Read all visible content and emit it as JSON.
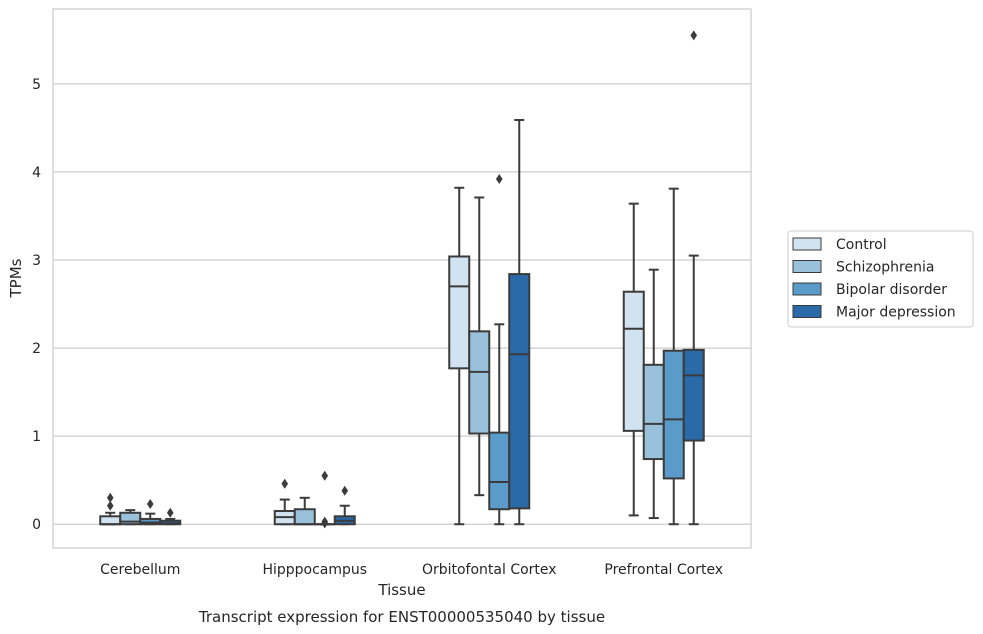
{
  "chart_data": {
    "type": "box",
    "caption": "Transcript expression for ENST00000535040 by tissue",
    "xlabel": "Tissue",
    "ylabel": "TPMs",
    "ylim": [
      -0.27,
      5.85
    ],
    "yticks": [
      0,
      1,
      2,
      3,
      4,
      5
    ],
    "grid": "horizontal",
    "legend_position": "right",
    "categories": [
      "Cerebellum",
      "Hipppocampus",
      "Orbitofontal Cortex",
      "Prefrontal Cortex"
    ],
    "series": [
      {
        "name": "Control",
        "color": "#d1e2f1",
        "boxes": [
          {
            "whislo": 0.0,
            "q1": 0.0,
            "med": 0.0,
            "q3": 0.09,
            "whishi": 0.13,
            "fliers": [
              0.21,
              0.3
            ]
          },
          {
            "whislo": 0.0,
            "q1": 0.0,
            "med": 0.08,
            "q3": 0.15,
            "whishi": 0.28,
            "fliers": [
              0.46
            ]
          },
          {
            "whislo": 0.0,
            "q1": 1.77,
            "med": 2.7,
            "q3": 3.04,
            "whishi": 3.82,
            "fliers": []
          },
          {
            "whislo": 0.1,
            "q1": 1.06,
            "med": 2.22,
            "q3": 2.64,
            "whishi": 3.64,
            "fliers": []
          }
        ]
      },
      {
        "name": "Schizophrenia",
        "color": "#9ac1dc",
        "boxes": [
          {
            "whislo": 0.0,
            "q1": 0.0,
            "med": 0.03,
            "q3": 0.13,
            "whishi": 0.16,
            "fliers": []
          },
          {
            "whislo": 0.0,
            "q1": 0.0,
            "med": 0.0,
            "q3": 0.17,
            "whishi": 0.3,
            "fliers": []
          },
          {
            "whislo": 0.33,
            "q1": 1.03,
            "med": 1.73,
            "q3": 2.19,
            "whishi": 3.71,
            "fliers": []
          },
          {
            "whislo": 0.07,
            "q1": 0.74,
            "med": 1.14,
            "q3": 1.81,
            "whishi": 2.89,
            "fliers": []
          }
        ]
      },
      {
        "name": "Bipolar disorder",
        "color": "#5a9bc9",
        "boxes": [
          {
            "whislo": 0.0,
            "q1": 0.0,
            "med": 0.02,
            "q3": 0.06,
            "whishi": 0.12,
            "fliers": [
              0.23
            ]
          },
          {
            "whislo": 0.0,
            "q1": 0.0,
            "med": 0.0,
            "q3": 0.0,
            "whishi": 0.0,
            "fliers": [
              0.01,
              0.03,
              0.55
            ]
          },
          {
            "whislo": 0.0,
            "q1": 0.17,
            "med": 0.48,
            "q3": 1.04,
            "whishi": 2.27,
            "fliers": [
              3.92
            ]
          },
          {
            "whislo": 0.0,
            "q1": 0.52,
            "med": 1.19,
            "q3": 1.97,
            "whishi": 3.81,
            "fliers": []
          }
        ]
      },
      {
        "name": "Major depression",
        "color": "#2b6aa9",
        "boxes": [
          {
            "whislo": 0.0,
            "q1": 0.0,
            "med": 0.01,
            "q3": 0.04,
            "whishi": 0.06,
            "fliers": [
              0.13
            ]
          },
          {
            "whislo": 0.0,
            "q1": 0.0,
            "med": 0.04,
            "q3": 0.09,
            "whishi": 0.21,
            "fliers": [
              0.38
            ]
          },
          {
            "whislo": 0.0,
            "q1": 0.18,
            "med": 1.93,
            "q3": 2.84,
            "whishi": 4.59,
            "fliers": []
          },
          {
            "whislo": 0.0,
            "q1": 0.95,
            "med": 1.69,
            "q3": 1.98,
            "whishi": 3.05,
            "fliers": [
              5.55
            ]
          }
        ]
      }
    ]
  }
}
